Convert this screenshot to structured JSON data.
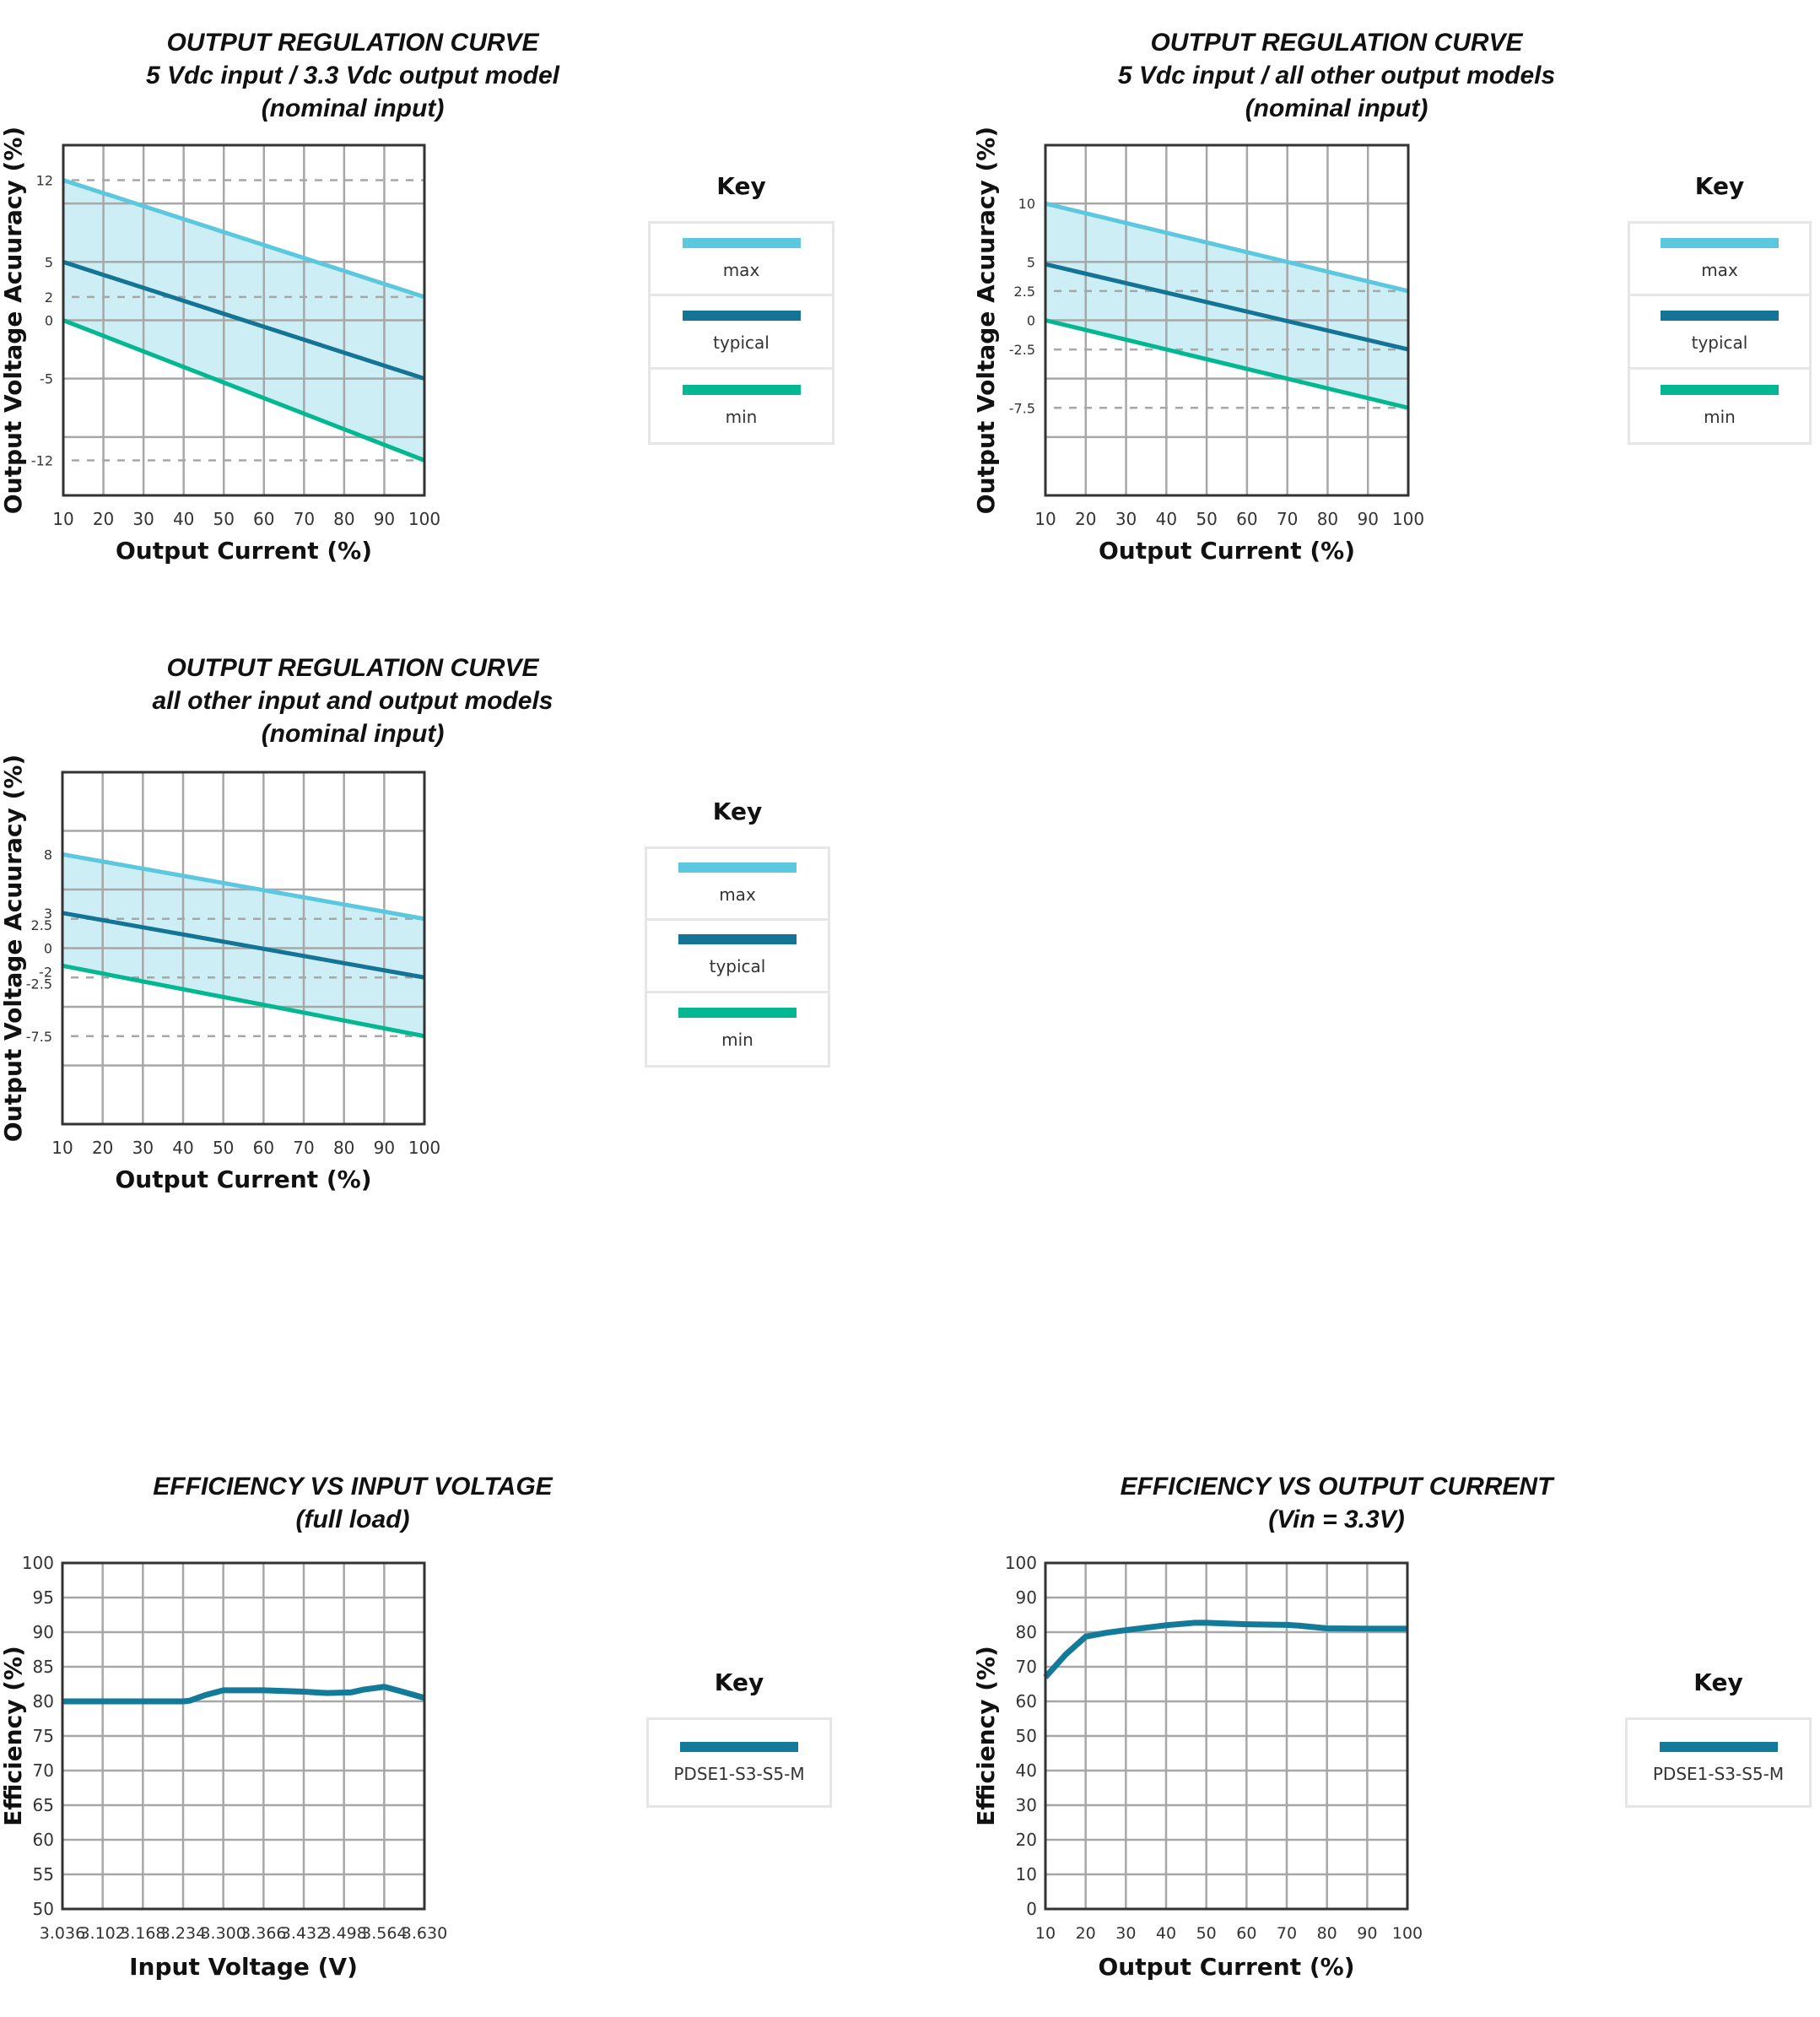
{
  "chart_data": [
    {
      "type": "line",
      "title_lines": [
        "OUTPUT REGULATION CURVE",
        "5 Vdc input / 3.3 Vdc output model",
        "(nominal input)"
      ],
      "xlabel": "Output Current (%)",
      "ylabel": "Output Voltage Acuuracy (%)",
      "xlim": [
        10,
        100
      ],
      "ylim": [
        -15,
        15
      ],
      "xgrid_step": 10,
      "ygrid_step": 5,
      "grid": true,
      "xticks": [
        "10",
        "20",
        "30",
        "40",
        "50",
        "60",
        "70",
        "80",
        "90",
        "100"
      ],
      "yticks": [
        "12",
        "5",
        "2",
        "0",
        "-5",
        "-12"
      ],
      "dashed_refs": [
        12,
        2,
        -12
      ],
      "shaded_band": true,
      "series": [
        {
          "name": "max",
          "x": [
            10,
            100
          ],
          "y": [
            12,
            2
          ],
          "color": "#5bc8e0"
        },
        {
          "name": "typical",
          "x": [
            10,
            100
          ],
          "y": [
            5,
            -5
          ],
          "color": "#137496"
        },
        {
          "name": "min",
          "x": [
            10,
            100
          ],
          "y": [
            0,
            -12
          ],
          "color": "#03b891"
        }
      ],
      "legend": {
        "title": "Key",
        "position": "right",
        "entries": [
          "max",
          "typical",
          "min"
        ]
      }
    },
    {
      "type": "line",
      "title_lines": [
        "OUTPUT REGULATION CURVE",
        "5 Vdc input / all other output models",
        "(nominal input)"
      ],
      "xlabel": "Output Current (%)",
      "ylabel": "Output Voltage Acuuracy (%)",
      "xlim": [
        10,
        100
      ],
      "ylim": [
        -15,
        15
      ],
      "xgrid_step": 10,
      "ygrid_step": 5,
      "grid": true,
      "xticks": [
        "10",
        "20",
        "30",
        "40",
        "50",
        "60",
        "70",
        "80",
        "90",
        "100"
      ],
      "yticks": [
        "10",
        "5",
        "2.5",
        "0",
        "-2.5",
        "-7.5"
      ],
      "dashed_refs": [
        2.5,
        -2.5,
        -7.5
      ],
      "shaded_band": true,
      "series": [
        {
          "name": "max",
          "x": [
            10,
            100
          ],
          "y": [
            10,
            2.5
          ],
          "color": "#5bc8e0"
        },
        {
          "name": "typical",
          "x": [
            10,
            100
          ],
          "y": [
            4.8,
            -2.5
          ],
          "color": "#137496"
        },
        {
          "name": "min",
          "x": [
            10,
            100
          ],
          "y": [
            0,
            -7.5
          ],
          "color": "#03b891"
        }
      ],
      "legend": {
        "title": "Key",
        "position": "right",
        "entries": [
          "max",
          "typical",
          "min"
        ]
      }
    },
    {
      "type": "line",
      "title_lines": [
        "OUTPUT REGULATION CURVE",
        "all other input and output models",
        "(nominal input)"
      ],
      "xlabel": "Output Current (%)",
      "ylabel": "Output Voltage Acuuracy (%)",
      "xlim": [
        10,
        100
      ],
      "ylim": [
        -15,
        15
      ],
      "xgrid_step": 10,
      "ygrid_step": 5,
      "grid": true,
      "xticks": [
        "10",
        "20",
        "30",
        "40",
        "50",
        "60",
        "70",
        "80",
        "90",
        "100"
      ],
      "yticks": [
        "8",
        "3",
        "2.5",
        "0",
        "-2",
        "-2.5",
        "-7.5"
      ],
      "dashed_refs": [
        2.5,
        -2.5,
        -7.5
      ],
      "shaded_band": true,
      "series": [
        {
          "name": "max",
          "x": [
            10,
            100
          ],
          "y": [
            8,
            2.5
          ],
          "color": "#5bc8e0"
        },
        {
          "name": "typical",
          "x": [
            10,
            100
          ],
          "y": [
            3,
            -2.5
          ],
          "color": "#137496"
        },
        {
          "name": "min",
          "x": [
            10,
            100
          ],
          "y": [
            -1.5,
            -7.5
          ],
          "color": "#03b891"
        }
      ],
      "legend": {
        "title": "Key",
        "position": "right",
        "entries": [
          "max",
          "typical",
          "min"
        ]
      }
    },
    {
      "type": "line",
      "title_lines": [
        "EFFICIENCY VS INPUT VOLTAGE",
        "(full load)"
      ],
      "xlabel": "Input Voltage (V)",
      "ylabel": "Efficiency (%)",
      "xlim": [
        3.036,
        3.63
      ],
      "ylim": [
        50,
        100
      ],
      "xgrid_step": 0.066,
      "ygrid_step": 5,
      "grid": true,
      "xticks": [
        "3.036",
        "3.102",
        "3.168",
        "3.234",
        "3.300",
        "3.366",
        "3.432",
        "3.498",
        "3.564",
        "3.630"
      ],
      "yticks": [
        "100",
        "95",
        "90",
        "85",
        "80",
        "75",
        "70",
        "65",
        "60",
        "55",
        "50"
      ],
      "dashed_refs": [],
      "shaded_band": false,
      "series": [
        {
          "name": "PDSE1-S3-S5-M",
          "x": [
            3.036,
            3.102,
            3.168,
            3.234,
            3.245,
            3.27,
            3.3,
            3.366,
            3.432,
            3.47,
            3.51,
            3.53,
            3.564,
            3.59,
            3.63
          ],
          "y": [
            80,
            80,
            80,
            80,
            80.1,
            80.9,
            81.6,
            81.6,
            81.4,
            81.2,
            81.3,
            81.7,
            82.1,
            81.5,
            80.5
          ],
          "color": "#147a99"
        }
      ],
      "legend": {
        "title": "Key",
        "position": "right",
        "entries": [
          "PDSE1-S3-S5-M"
        ]
      }
    },
    {
      "type": "line",
      "title_lines": [
        "EFFICIENCY VS OUTPUT CURRENT",
        "(Vin = 3.3V)"
      ],
      "xlabel": "Output Current (%)",
      "ylabel": "Efficiency (%)",
      "xlim": [
        10,
        100
      ],
      "ylim": [
        0,
        100
      ],
      "xgrid_step": 10,
      "ygrid_step": 10,
      "grid": true,
      "xticks": [
        "10",
        "20",
        "30",
        "40",
        "50",
        "60",
        "70",
        "80",
        "90",
        "100"
      ],
      "yticks": [
        "100",
        "90",
        "80",
        "70",
        "60",
        "50",
        "40",
        "30",
        "20",
        "10",
        "0"
      ],
      "dashed_refs": [],
      "shaded_band": false,
      "series": [
        {
          "name": "PDSE1-S3-S5-M",
          "x": [
            10,
            15,
            20,
            25,
            30,
            40,
            47,
            50,
            60,
            70,
            73,
            80,
            90,
            100
          ],
          "y": [
            67,
            73.5,
            78.7,
            79.8,
            80.6,
            82,
            82.7,
            82.7,
            82.3,
            82.1,
            81.9,
            81.1,
            81,
            81
          ],
          "color": "#147a99"
        }
      ],
      "legend": {
        "title": "Key",
        "position": "right",
        "entries": [
          "PDSE1-S3-S5-M"
        ]
      }
    }
  ]
}
